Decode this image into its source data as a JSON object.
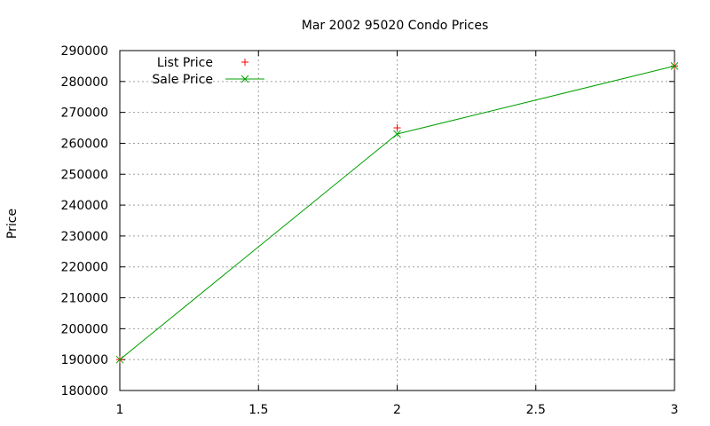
{
  "chart_data": {
    "type": "line",
    "title": "Mar 2002 95020 Condo Prices",
    "xlabel": "",
    "ylabel": "Price",
    "xlim": [
      1,
      3
    ],
    "ylim": [
      180000,
      290000
    ],
    "x_ticks": [
      "1",
      "1.5",
      "2",
      "2.5",
      "3"
    ],
    "y_ticks": [
      "180000",
      "190000",
      "200000",
      "210000",
      "220000",
      "230000",
      "240000",
      "250000",
      "260000",
      "270000",
      "280000",
      "290000"
    ],
    "grid": true,
    "legend_position": "top-left",
    "series": [
      {
        "name": "List Price",
        "style": "points",
        "marker": "plus",
        "color": "#ff0000",
        "x": [
          1,
          2,
          3
        ],
        "y": [
          190000,
          265000,
          285000
        ]
      },
      {
        "name": "Sale Price",
        "style": "linespoints",
        "marker": "cross",
        "color": "#00a000",
        "x": [
          1,
          2,
          3
        ],
        "y": [
          190000,
          263000,
          285000
        ]
      }
    ]
  }
}
